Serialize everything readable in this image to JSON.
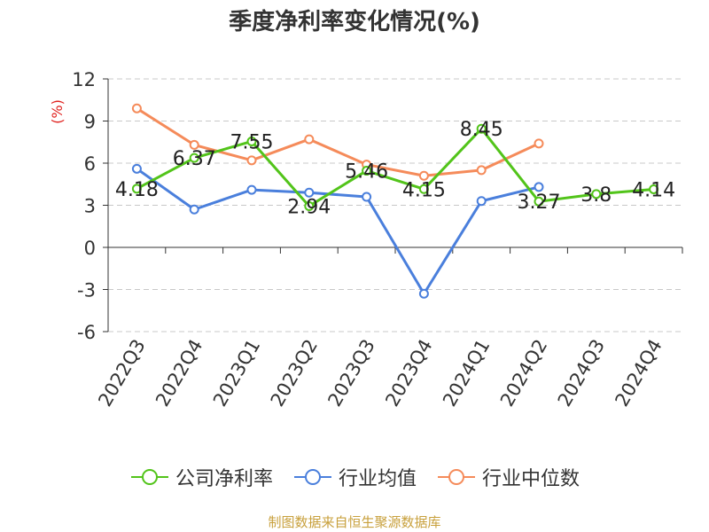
{
  "chart_data": {
    "type": "line",
    "title": "季度净利率变化情况(%)",
    "ylabel": "(%)",
    "xlabel": "",
    "categories": [
      "2022Q3",
      "2022Q4",
      "2023Q1",
      "2023Q2",
      "2023Q3",
      "2023Q4",
      "2024Q1",
      "2024Q2",
      "2024Q3",
      "2024Q4"
    ],
    "ylim": [
      -6,
      12
    ],
    "yticks": [
      -6,
      -3,
      0,
      3,
      6,
      9,
      12
    ],
    "grid": "horizontal dashed",
    "legend_position": "bottom",
    "series": [
      {
        "name": "公司净利率",
        "color": "#52c41a",
        "values": [
          4.18,
          6.37,
          7.55,
          2.94,
          5.46,
          4.15,
          8.45,
          3.27,
          3.8,
          4.14
        ],
        "data_labels": [
          "4.18",
          "6.37",
          "7.55",
          "2.94",
          "5.46",
          "4.15",
          "8.45",
          "3.27",
          "3.8",
          "4.14"
        ]
      },
      {
        "name": "行业均值",
        "color": "#4a7fdc",
        "values": [
          5.6,
          2.7,
          4.1,
          3.9,
          3.6,
          -3.3,
          3.3,
          4.3,
          null,
          null
        ]
      },
      {
        "name": "行业中位数",
        "color": "#f58b5a",
        "values": [
          9.9,
          7.3,
          6.2,
          7.7,
          5.9,
          5.1,
          5.5,
          7.4,
          null,
          null
        ]
      }
    ]
  },
  "footer": {
    "source": "制图数据来自恒生聚源数据库"
  }
}
